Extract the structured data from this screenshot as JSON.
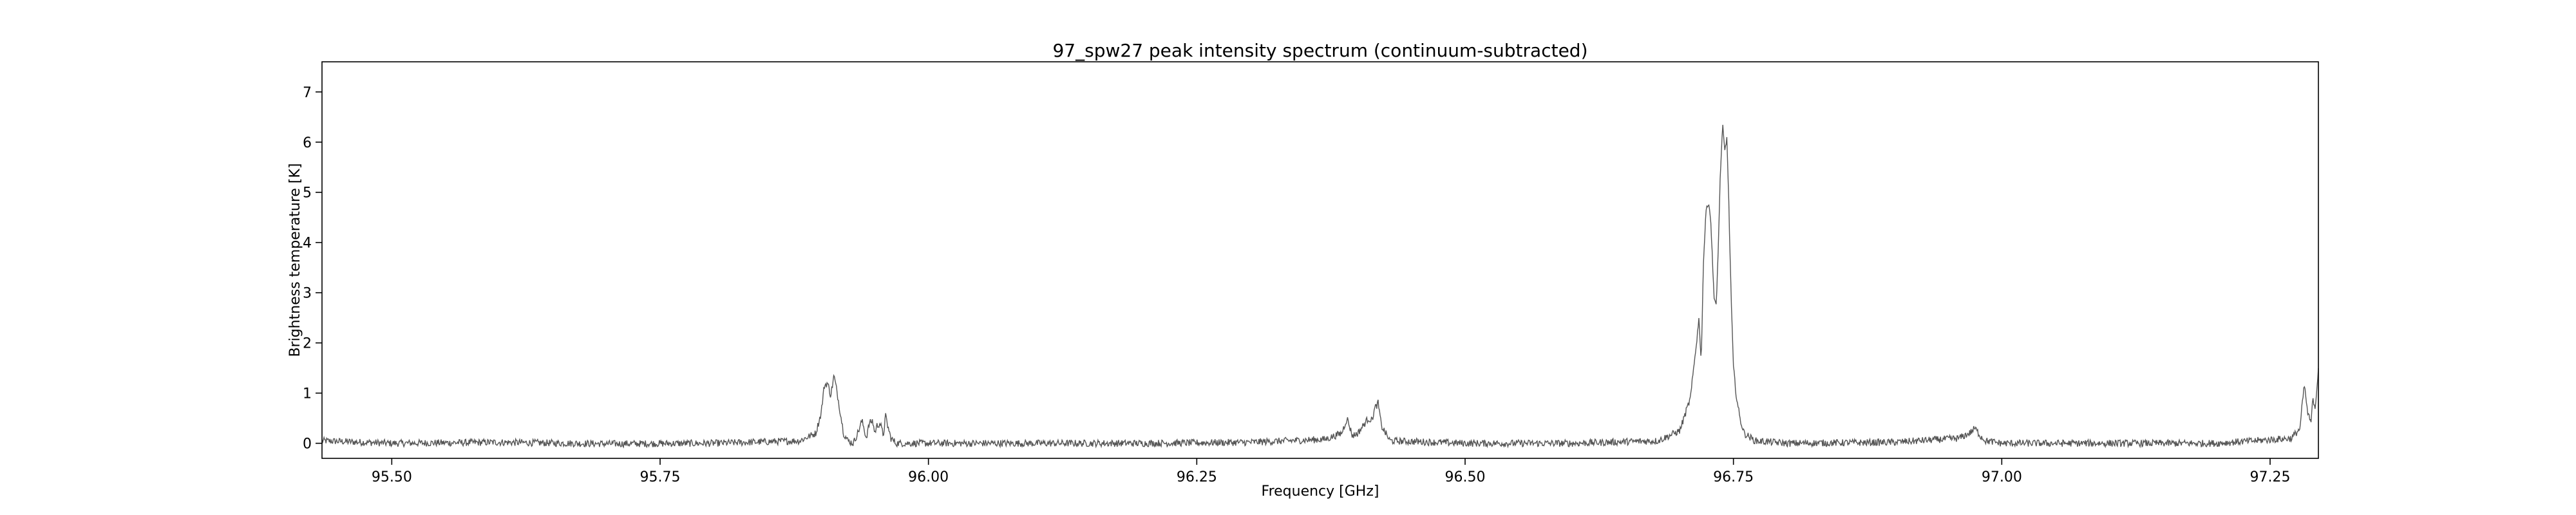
{
  "chart_data": {
    "type": "line",
    "title": "97_spw27 peak intensity spectrum (continuum-subtracted)",
    "xlabel": "Frequency [GHz]",
    "ylabel": "Brightness temperature [K]",
    "xlim": [
      95.435,
      97.295
    ],
    "ylim": [
      -0.3,
      7.6
    ],
    "xticks": [
      95.5,
      95.75,
      96.0,
      96.25,
      96.5,
      96.75,
      97.0,
      97.25
    ],
    "xtick_labels": [
      "95.50",
      "95.75",
      "96.00",
      "96.25",
      "96.50",
      "96.75",
      "97.00",
      "97.25"
    ],
    "yticks": [
      0,
      1,
      2,
      3,
      4,
      5,
      6,
      7
    ],
    "ytick_labels": [
      "0",
      "1",
      "2",
      "3",
      "4",
      "5",
      "6",
      "7"
    ],
    "grid": false,
    "line_color": "#555555",
    "series": [
      {
        "x": [
          95.435,
          95.5,
          95.6,
          95.7,
          95.8,
          95.88,
          95.895,
          95.9,
          95.903,
          95.906,
          95.909,
          95.912,
          95.915,
          95.918,
          95.921,
          95.925,
          95.93,
          95.935,
          95.938,
          95.94,
          95.942,
          95.945,
          95.948,
          95.95,
          95.952,
          95.955,
          95.958,
          95.96,
          95.962,
          95.965,
          95.97,
          96.0,
          96.2,
          96.3,
          96.37,
          96.385,
          96.39,
          96.395,
          96.4,
          96.405,
          96.41,
          96.413,
          96.416,
          96.419,
          96.422,
          96.43,
          96.5,
          96.6,
          96.68,
          96.7,
          96.71,
          96.715,
          96.718,
          96.72,
          96.722,
          96.725,
          96.728,
          96.73,
          96.732,
          96.734,
          96.736,
          96.738,
          96.74,
          96.742,
          96.744,
          96.746,
          96.748,
          96.75,
          96.753,
          96.756,
          96.76,
          96.77,
          96.8,
          96.9,
          96.96,
          96.97,
          96.975,
          96.98,
          96.985,
          97.0,
          97.1,
          97.2,
          97.27,
          97.278,
          97.28,
          97.282,
          97.285,
          97.288,
          97.29,
          97.292,
          97.295
        ],
        "y": [
          0.05,
          0.0,
          0.02,
          -0.01,
          0.0,
          0.05,
          0.2,
          0.6,
          1.15,
          1.2,
          0.95,
          1.35,
          1.0,
          0.6,
          0.2,
          0.05,
          0.0,
          0.25,
          0.45,
          0.3,
          0.1,
          0.4,
          0.45,
          0.2,
          0.35,
          0.4,
          0.15,
          0.55,
          0.35,
          0.1,
          0.0,
          0.0,
          0.0,
          0.02,
          0.08,
          0.2,
          0.5,
          0.15,
          0.2,
          0.35,
          0.5,
          0.45,
          0.7,
          0.8,
          0.35,
          0.05,
          0.0,
          0.0,
          0.05,
          0.25,
          0.9,
          1.9,
          2.5,
          1.6,
          3.6,
          4.8,
          4.7,
          3.9,
          2.9,
          2.7,
          4.0,
          5.5,
          6.3,
          5.8,
          6.1,
          4.5,
          2.8,
          1.5,
          0.9,
          0.5,
          0.2,
          0.05,
          0.0,
          0.02,
          0.1,
          0.2,
          0.3,
          0.15,
          0.05,
          0.0,
          0.0,
          0.0,
          0.1,
          0.3,
          0.8,
          1.15,
          0.6,
          0.4,
          0.9,
          0.7,
          1.5
        ]
      }
    ]
  }
}
